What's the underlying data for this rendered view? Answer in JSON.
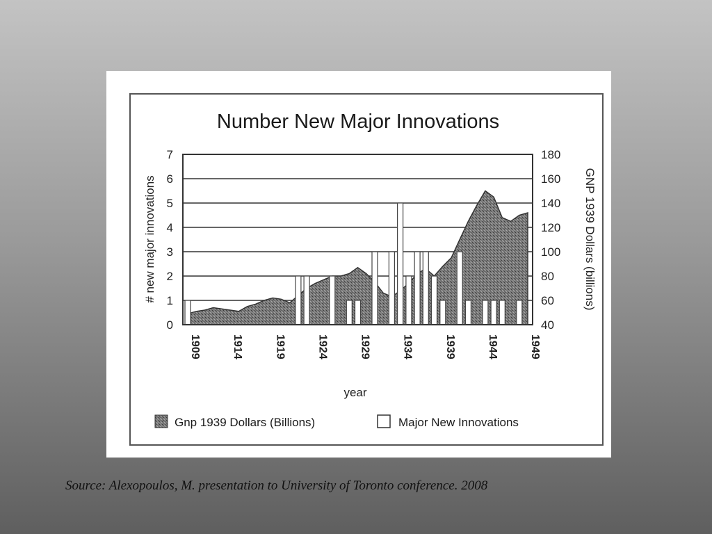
{
  "caption": "Source: Alexopoulos, M. presentation to University of Toronto conference. 2008",
  "chart_data": {
    "type": "bar",
    "title": "Number New Major Innovations",
    "xlabel": "year",
    "ylabel_left": "# new major innovations",
    "ylabel_right": "GNP 1939 Dollars (billions)",
    "x_tick_labels": [
      "1909",
      "1914",
      "1919",
      "1924",
      "1929",
      "1934",
      "1939",
      "1944",
      "1949"
    ],
    "y_left_range": [
      0,
      7
    ],
    "y_left_ticks": [
      "0",
      "1",
      "2",
      "3",
      "4",
      "5",
      "6",
      "7"
    ],
    "y_right_range": [
      40,
      180
    ],
    "y_right_ticks": [
      "40",
      "60",
      "80",
      "100",
      "120",
      "140",
      "160",
      "180"
    ],
    "grid": true,
    "legend_position": "bottom",
    "series": [
      {
        "name": "Gnp 1939 Dollars (Billions)",
        "type": "area",
        "axis": "right",
        "color": "#6e6e6e",
        "x": [
          1909,
          1910,
          1911,
          1912,
          1913,
          1914,
          1915,
          1916,
          1917,
          1918,
          1919,
          1920,
          1921,
          1922,
          1923,
          1924,
          1925,
          1926,
          1927,
          1928,
          1929,
          1930,
          1931,
          1932,
          1933,
          1934,
          1935,
          1936,
          1937,
          1938,
          1939,
          1940,
          1941,
          1942,
          1943,
          1944,
          1945,
          1946,
          1947,
          1948,
          1949
        ],
        "y": [
          49,
          51,
          52,
          54,
          53,
          52,
          51,
          55,
          57,
          60,
          62,
          61,
          58,
          64,
          70,
          74,
          77,
          80,
          80,
          82,
          87,
          82,
          75,
          66,
          63,
          68,
          74,
          82,
          86,
          80,
          88,
          95,
          110,
          125,
          138,
          150,
          145,
          128,
          125,
          130,
          132
        ]
      },
      {
        "name": "Major New Innovations",
        "type": "bar",
        "axis": "left",
        "color": "#ffffff",
        "x": [
          1909,
          1910,
          1911,
          1912,
          1913,
          1914,
          1915,
          1916,
          1917,
          1918,
          1919,
          1920,
          1921,
          1922,
          1923,
          1924,
          1925,
          1926,
          1927,
          1928,
          1929,
          1930,
          1931,
          1932,
          1933,
          1934,
          1935,
          1936,
          1937,
          1938,
          1939,
          1940,
          1941,
          1942,
          1943,
          1944,
          1945,
          1946,
          1947,
          1948,
          1949
        ],
        "y": [
          1,
          0,
          0,
          0,
          0,
          0,
          0,
          0,
          0,
          0,
          0,
          0,
          0,
          2,
          2,
          0,
          0,
          2,
          0,
          1,
          1,
          0,
          3,
          0,
          3,
          5,
          2,
          3,
          3,
          2,
          1,
          0,
          3,
          1,
          0,
          1,
          1,
          1,
          0,
          1,
          0
        ]
      }
    ]
  }
}
